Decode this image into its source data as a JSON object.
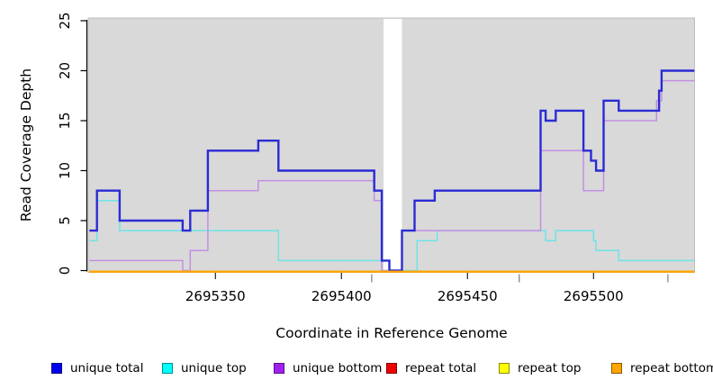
{
  "chart_data": {
    "type": "line",
    "subtype": "step-after-coverage",
    "title": "",
    "xlabel": "Coordinate in Reference Genome",
    "ylabel": "Read Coverage Depth",
    "xlim": [
      2695300,
      2695540
    ],
    "ylim": [
      0,
      25
    ],
    "grid": false,
    "plot_background": "#d9d9d9",
    "plot_border": "#bdbdbd",
    "missing_data_gap": [
      2695417,
      2695424
    ],
    "x_ticks": [
      2695350,
      2695400,
      2695450,
      2695500
    ],
    "x_tick_labels": [
      "2695350",
      "2695400",
      "2695450",
      "2695500"
    ],
    "x_minor_marks": [
      2695412,
      2695470.5,
      2695529.5
    ],
    "y_ticks": [
      0,
      5,
      10,
      15,
      20,
      25
    ],
    "y_tick_labels": [
      "0",
      "5",
      "10",
      "15",
      "20",
      "25"
    ],
    "legend_position": "bottom",
    "series": [
      {
        "name": "unique top",
        "line_color": "#6fe3e6",
        "legend_color": "#00ffff",
        "line_width": 1.5,
        "points": [
          [
            2695300,
            3
          ],
          [
            2695303,
            7
          ],
          [
            2695312,
            4
          ],
          [
            2695375,
            1
          ],
          [
            2695416,
            0
          ],
          [
            2695430,
            3
          ],
          [
            2695438,
            4
          ],
          [
            2695481,
            3
          ],
          [
            2695485,
            4
          ],
          [
            2695500,
            3
          ],
          [
            2695501,
            2
          ],
          [
            2695510,
            1
          ],
          [
            2695540,
            1
          ]
        ]
      },
      {
        "name": "unique bottom",
        "line_color": "#c38fe3",
        "legend_color": "#a020f0",
        "line_width": 1.5,
        "points": [
          [
            2695300,
            1
          ],
          [
            2695337,
            0
          ],
          [
            2695340,
            2
          ],
          [
            2695347,
            8
          ],
          [
            2695367,
            9
          ],
          [
            2695413,
            7
          ],
          [
            2695416,
            0
          ],
          [
            2695424,
            4
          ],
          [
            2695479,
            12
          ],
          [
            2695496,
            8
          ],
          [
            2695504,
            15
          ],
          [
            2695525,
            17
          ],
          [
            2695527,
            19
          ],
          [
            2695540,
            19
          ]
        ]
      },
      {
        "name": "unique total",
        "line_color": "#2b2bd5",
        "legend_color": "#0000ee",
        "line_width": 2.4,
        "points": [
          [
            2695300,
            4
          ],
          [
            2695303,
            8
          ],
          [
            2695312,
            5
          ],
          [
            2695337,
            4
          ],
          [
            2695340,
            6
          ],
          [
            2695347,
            12
          ],
          [
            2695367,
            13
          ],
          [
            2695375,
            10
          ],
          [
            2695413,
            8
          ],
          [
            2695416,
            1
          ],
          [
            2695419,
            0
          ],
          [
            2695424,
            4
          ],
          [
            2695429,
            7
          ],
          [
            2695437,
            8
          ],
          [
            2695479,
            16
          ],
          [
            2695481,
            15
          ],
          [
            2695485,
            16
          ],
          [
            2695496,
            12
          ],
          [
            2695499,
            11
          ],
          [
            2695501,
            10
          ],
          [
            2695504,
            17
          ],
          [
            2695510,
            16
          ],
          [
            2695526,
            18
          ],
          [
            2695527,
            20
          ],
          [
            2695540,
            20
          ]
        ]
      },
      {
        "name": "repeat total",
        "line_color": "#dd0000",
        "legend_color": "#ee0000",
        "line_width": 1.5,
        "points": [
          [
            2695300,
            0
          ],
          [
            2695540,
            0
          ]
        ]
      },
      {
        "name": "repeat top",
        "line_color": "#ffff00",
        "legend_color": "#ffff00",
        "line_width": 1.5,
        "points": [
          [
            2695300,
            0
          ],
          [
            2695540,
            0
          ]
        ]
      },
      {
        "name": "repeat bottom",
        "line_color": "#ffa500",
        "legend_color": "#ffa500",
        "line_width": 2.4,
        "points": [
          [
            2695300,
            0
          ],
          [
            2695540,
            0
          ]
        ]
      }
    ],
    "legend": [
      {
        "label": "unique total",
        "color": "#0000ee"
      },
      {
        "label": "unique top",
        "color": "#00ffff"
      },
      {
        "label": "unique bottom",
        "color": "#a020f0"
      },
      {
        "label": "repeat total",
        "color": "#ee0000"
      },
      {
        "label": "repeat top",
        "color": "#ffff00"
      },
      {
        "label": "repeat bottom",
        "color": "#ffa500"
      }
    ]
  }
}
